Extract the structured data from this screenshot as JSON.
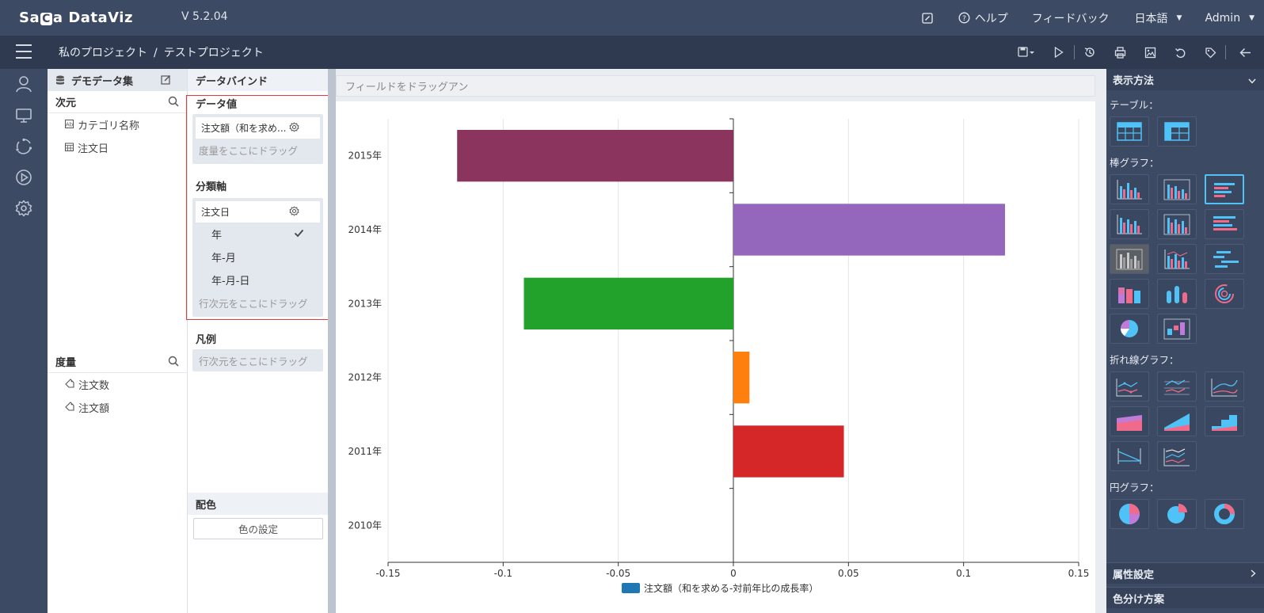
{
  "app": {
    "logo_a": "Sa",
    "logo_mark": "C",
    "logo_b": "a DataViz",
    "version": "V 5.2.04"
  },
  "top_nav": {
    "help": "ヘルプ",
    "feedback": "フィードバック",
    "language": "日本語",
    "user": "Admin"
  },
  "breadcrumb": {
    "project_root": "私のプロジェクト",
    "separator": "/",
    "current": "テストプロジェクト"
  },
  "dataset": {
    "title": "デモデータ集",
    "dimension_title": "次元",
    "dimensions": [
      {
        "icon": "text-field-icon",
        "label": "カテゴリ名称"
      },
      {
        "icon": "date-field-icon",
        "label": "注文日"
      }
    ],
    "measure_title": "度量",
    "measures": [
      {
        "icon": "tag-icon",
        "label": "注文数"
      },
      {
        "icon": "tag-icon",
        "label": "注文額"
      }
    ]
  },
  "bind": {
    "title": "データバインド",
    "value_label": "データ値",
    "value_field": "注文額（和を求め...",
    "value_hint": "度量をここにドラッグ",
    "axis_label": "分類軸",
    "axis_field": "注文日",
    "axis_options": [
      "年",
      "年-月",
      "年-月-日"
    ],
    "axis_selected": "年",
    "axis_hint": "行次元をここにドラッグ",
    "legend_label": "凡例",
    "legend_hint": "行次元をここにドラッグ",
    "color_label": "配色",
    "color_button": "色の設定"
  },
  "canvas": {
    "drop_header": "フィールドをドラッグアン"
  },
  "gallery": {
    "title": "表示方法",
    "groups": {
      "table": "テーブル：",
      "bar": "棒グラフ：",
      "line": "折れ線グラフ：",
      "pie": "円グラフ："
    },
    "footer": {
      "attributes": "属性設定",
      "coloring": "色分け方案"
    }
  },
  "colors": {
    "header": "#3d4a63",
    "subbar": "#2f3a50",
    "accent": "#4fc3f7",
    "highlight_box": "#e33a3a"
  },
  "chart_data": {
    "type": "bar",
    "orientation": "horizontal",
    "categories": [
      "2015年",
      "2014年",
      "2013年",
      "2012年",
      "2011年",
      "2010年"
    ],
    "series": [
      {
        "name": "注文額（和を求める-対前年比の成長率）",
        "values": [
          -0.12,
          0.118,
          -0.091,
          0.007,
          0.048,
          null
        ]
      }
    ],
    "bar_colors": [
      "#8b355e",
      "#9467bd",
      "#22a12b",
      "#ff7f0e",
      "#d62728",
      "#1f77b4"
    ],
    "legend_color": "#1f77b4",
    "xlim": [
      -0.15,
      0.15
    ],
    "x_ticks": [
      "-0.15",
      "-0.1",
      "-0.05",
      "0",
      "0.05",
      "0.1",
      "0.15"
    ],
    "x_tick_values": [
      -0.15,
      -0.1,
      -0.05,
      0,
      0.05,
      0.1,
      0.15
    ],
    "grid": true,
    "legend_position": "bottom"
  }
}
